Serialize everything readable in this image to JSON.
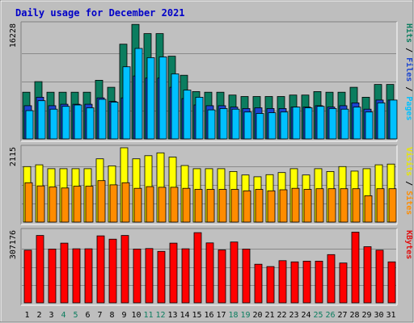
{
  "chart_data": {
    "type": "bar",
    "title": "Daily usage for December 2021",
    "categories": [
      "1",
      "2",
      "3",
      "4",
      "5",
      "6",
      "7",
      "8",
      "9",
      "10",
      "11",
      "12",
      "13",
      "14",
      "15",
      "16",
      "17",
      "18",
      "19",
      "20",
      "21",
      "22",
      "23",
      "24",
      "25",
      "26",
      "27",
      "28",
      "29",
      "30",
      "31"
    ],
    "weekend_days": [
      "4",
      "5",
      "11",
      "12",
      "18",
      "19",
      "25",
      "26"
    ],
    "panels": [
      {
        "id": "hits",
        "scale_max_label": "16228",
        "ylim": [
          0,
          16228
        ],
        "right_labels": [
          {
            "text": "Pages",
            "color": "#00c0ff"
          },
          {
            "text": " / ",
            "color": "#000000"
          },
          {
            "text": "Files",
            "color": "#1b45d0"
          },
          {
            "text": " / ",
            "color": "#000000"
          },
          {
            "text": "Hits",
            "color": "#0b7d5f"
          }
        ],
        "series": [
          {
            "name": "Hits",
            "color": "#0b7d5f",
            "values": [
              6600,
              8100,
              6600,
              6600,
              6600,
              6600,
              8300,
              7300,
              13400,
              16200,
              14900,
              14900,
              11700,
              9000,
              6700,
              6600,
              6600,
              6200,
              6000,
              6000,
              6000,
              6000,
              6200,
              6200,
              6700,
              6600,
              6600,
              7300,
              5900,
              7700,
              7700
            ]
          },
          {
            "name": "Files",
            "color": "#1b45d0",
            "values": [
              4700,
              5900,
              4700,
              4900,
              4900,
              4900,
              5800,
              5300,
              5800,
              8900,
              8600,
              8600,
              7300,
              5700,
              4800,
              4700,
              4700,
              4500,
              4300,
              4400,
              4300,
              4300,
              4500,
              4500,
              4700,
              4500,
              4700,
              5100,
              4200,
              5500,
              5500
            ]
          },
          {
            "name": "Pages",
            "color": "#00c0ff",
            "values": [
              4000,
              5400,
              4200,
              4600,
              4800,
              4400,
              5600,
              5200,
              10200,
              12800,
              11500,
              11600,
              9200,
              6900,
              5900,
              4100,
              4300,
              4200,
              3800,
              3600,
              3700,
              3800,
              4500,
              4400,
              4600,
              4300,
              4200,
              4500,
              3800,
              5100,
              5500
            ]
          }
        ]
      },
      {
        "id": "visits",
        "scale_max_label": "2115",
        "ylim": [
          0,
          2115
        ],
        "right_labels": [
          {
            "text": "Sites",
            "color": "#ff8c00"
          },
          {
            "text": " / ",
            "color": "#000000"
          },
          {
            "text": "Visits",
            "color": "#e8e800"
          }
        ],
        "series": [
          {
            "name": "Visits",
            "color": "#ffff00",
            "values": [
              1580,
              1630,
              1520,
              1520,
              1520,
              1520,
              1800,
              1600,
              2115,
              1800,
              1890,
              1970,
              1850,
              1610,
              1520,
              1520,
              1520,
              1440,
              1340,
              1290,
              1350,
              1410,
              1520,
              1340,
              1520,
              1440,
              1580,
              1450,
              1520,
              1630,
              1650
            ]
          },
          {
            "name": "Sites",
            "color": "#ff8c00",
            "values": [
              1120,
              1030,
              1000,
              970,
              1020,
              1020,
              1180,
              1060,
              1120,
              960,
              1010,
              990,
              990,
              960,
              930,
              930,
              930,
              930,
              890,
              930,
              890,
              920,
              960,
              930,
              950,
              950,
              950,
              950,
              750,
              950,
              950
            ]
          }
        ]
      },
      {
        "id": "kbytes",
        "scale_max_label": "307176",
        "ylim": [
          0,
          307176
        ],
        "right_labels": [
          {
            "text": "KBytes",
            "color": "#e01010"
          }
        ],
        "series": [
          {
            "name": "KBytes",
            "color": "#ff0000",
            "values": [
              225000,
              288000,
              230000,
              255000,
              231000,
              231000,
              286000,
              272000,
              288000,
              230000,
              232000,
              220000,
              255000,
              231000,
              300000,
              256000,
              226000,
              260000,
              230000,
              165000,
              155000,
              180000,
              175000,
              178000,
              178000,
              206000,
              170000,
              302000,
              240000,
              225000,
              175000
            ]
          }
        ]
      }
    ],
    "grid": true,
    "colors": {
      "plot_bg": "#c0c0c0",
      "frame_bg": "#bebebe",
      "title": "#0000c8",
      "axis_text": "#000000",
      "weekend_text": "#0b7d5f"
    }
  }
}
